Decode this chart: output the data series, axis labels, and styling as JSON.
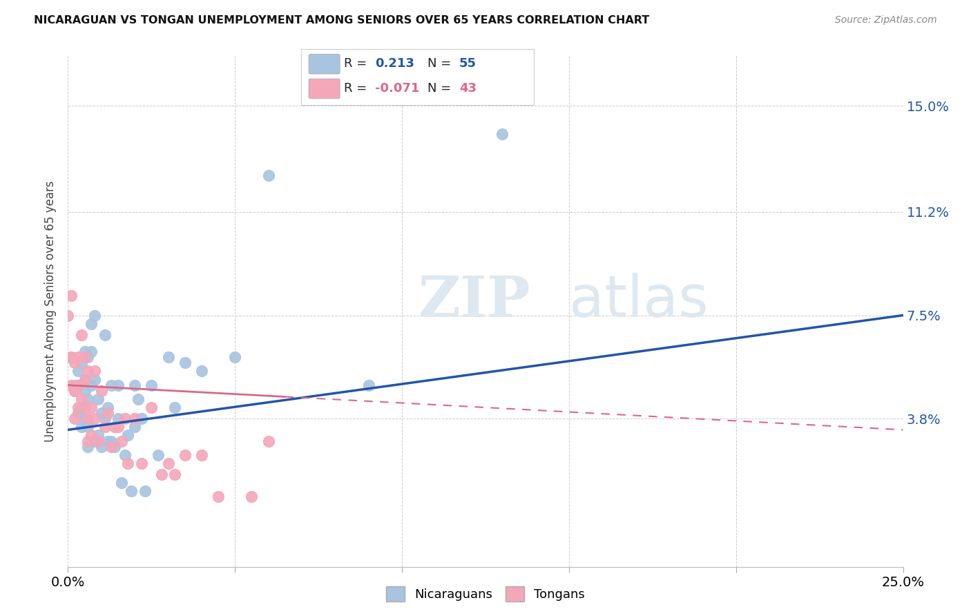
{
  "title": "NICARAGUAN VS TONGAN UNEMPLOYMENT AMONG SENIORS OVER 65 YEARS CORRELATION CHART",
  "source": "Source: ZipAtlas.com",
  "ylabel": "Unemployment Among Seniors over 65 years",
  "ytick_labels": [
    "3.8%",
    "7.5%",
    "11.2%",
    "15.0%"
  ],
  "ytick_values": [
    0.038,
    0.075,
    0.112,
    0.15
  ],
  "xlim": [
    0.0,
    0.25
  ],
  "ylim": [
    -0.015,
    0.168
  ],
  "nicaraguan_R": "0.213",
  "nicaraguan_N": "55",
  "tongan_R": "-0.071",
  "tongan_N": "43",
  "nicaraguan_color": "#a8c4e0",
  "tongan_color": "#f4a7b9",
  "nicaraguan_line_color": "#2255aa",
  "tongan_line_color": "#dd6688",
  "background_color": "#ffffff",
  "watermark_zip": "ZIP",
  "watermark_atlas": "atlas",
  "nic_line_x0": 0.0,
  "nic_line_y0": 0.034,
  "nic_line_x1": 0.25,
  "nic_line_y1": 0.075,
  "ton_line_x0": 0.0,
  "ton_line_y0": 0.05,
  "ton_line_x1": 0.25,
  "ton_line_y1": 0.034,
  "nicaraguan_x": [
    0.001,
    0.002,
    0.002,
    0.003,
    0.003,
    0.003,
    0.004,
    0.004,
    0.004,
    0.005,
    0.005,
    0.005,
    0.005,
    0.006,
    0.006,
    0.006,
    0.006,
    0.007,
    0.007,
    0.007,
    0.008,
    0.008,
    0.008,
    0.009,
    0.009,
    0.01,
    0.01,
    0.011,
    0.011,
    0.012,
    0.012,
    0.013,
    0.013,
    0.014,
    0.015,
    0.015,
    0.016,
    0.017,
    0.018,
    0.019,
    0.02,
    0.02,
    0.021,
    0.022,
    0.023,
    0.025,
    0.027,
    0.03,
    0.032,
    0.035,
    0.04,
    0.05,
    0.06,
    0.09,
    0.13
  ],
  "nicaraguan_y": [
    0.06,
    0.05,
    0.048,
    0.055,
    0.05,
    0.04,
    0.058,
    0.035,
    0.042,
    0.062,
    0.052,
    0.048,
    0.038,
    0.06,
    0.045,
    0.035,
    0.028,
    0.072,
    0.062,
    0.05,
    0.075,
    0.052,
    0.03,
    0.045,
    0.032,
    0.04,
    0.028,
    0.068,
    0.038,
    0.042,
    0.03,
    0.05,
    0.03,
    0.028,
    0.05,
    0.038,
    0.015,
    0.025,
    0.032,
    0.012,
    0.05,
    0.035,
    0.045,
    0.038,
    0.012,
    0.05,
    0.025,
    0.06,
    0.042,
    0.058,
    0.055,
    0.06,
    0.125,
    0.05,
    0.14
  ],
  "tongan_x": [
    0.0,
    0.001,
    0.001,
    0.001,
    0.002,
    0.002,
    0.002,
    0.003,
    0.003,
    0.003,
    0.004,
    0.004,
    0.005,
    0.005,
    0.005,
    0.006,
    0.006,
    0.006,
    0.007,
    0.007,
    0.008,
    0.008,
    0.009,
    0.01,
    0.011,
    0.012,
    0.013,
    0.014,
    0.015,
    0.016,
    0.017,
    0.018,
    0.02,
    0.022,
    0.025,
    0.028,
    0.03,
    0.032,
    0.035,
    0.04,
    0.045,
    0.055,
    0.06
  ],
  "tongan_y": [
    0.075,
    0.082,
    0.06,
    0.05,
    0.058,
    0.048,
    0.038,
    0.06,
    0.05,
    0.042,
    0.068,
    0.045,
    0.052,
    0.06,
    0.042,
    0.055,
    0.038,
    0.03,
    0.042,
    0.032,
    0.055,
    0.038,
    0.03,
    0.048,
    0.035,
    0.04,
    0.028,
    0.035,
    0.035,
    0.03,
    0.038,
    0.022,
    0.038,
    0.022,
    0.042,
    0.018,
    0.022,
    0.018,
    0.025,
    0.025,
    0.01,
    0.01,
    0.03
  ]
}
